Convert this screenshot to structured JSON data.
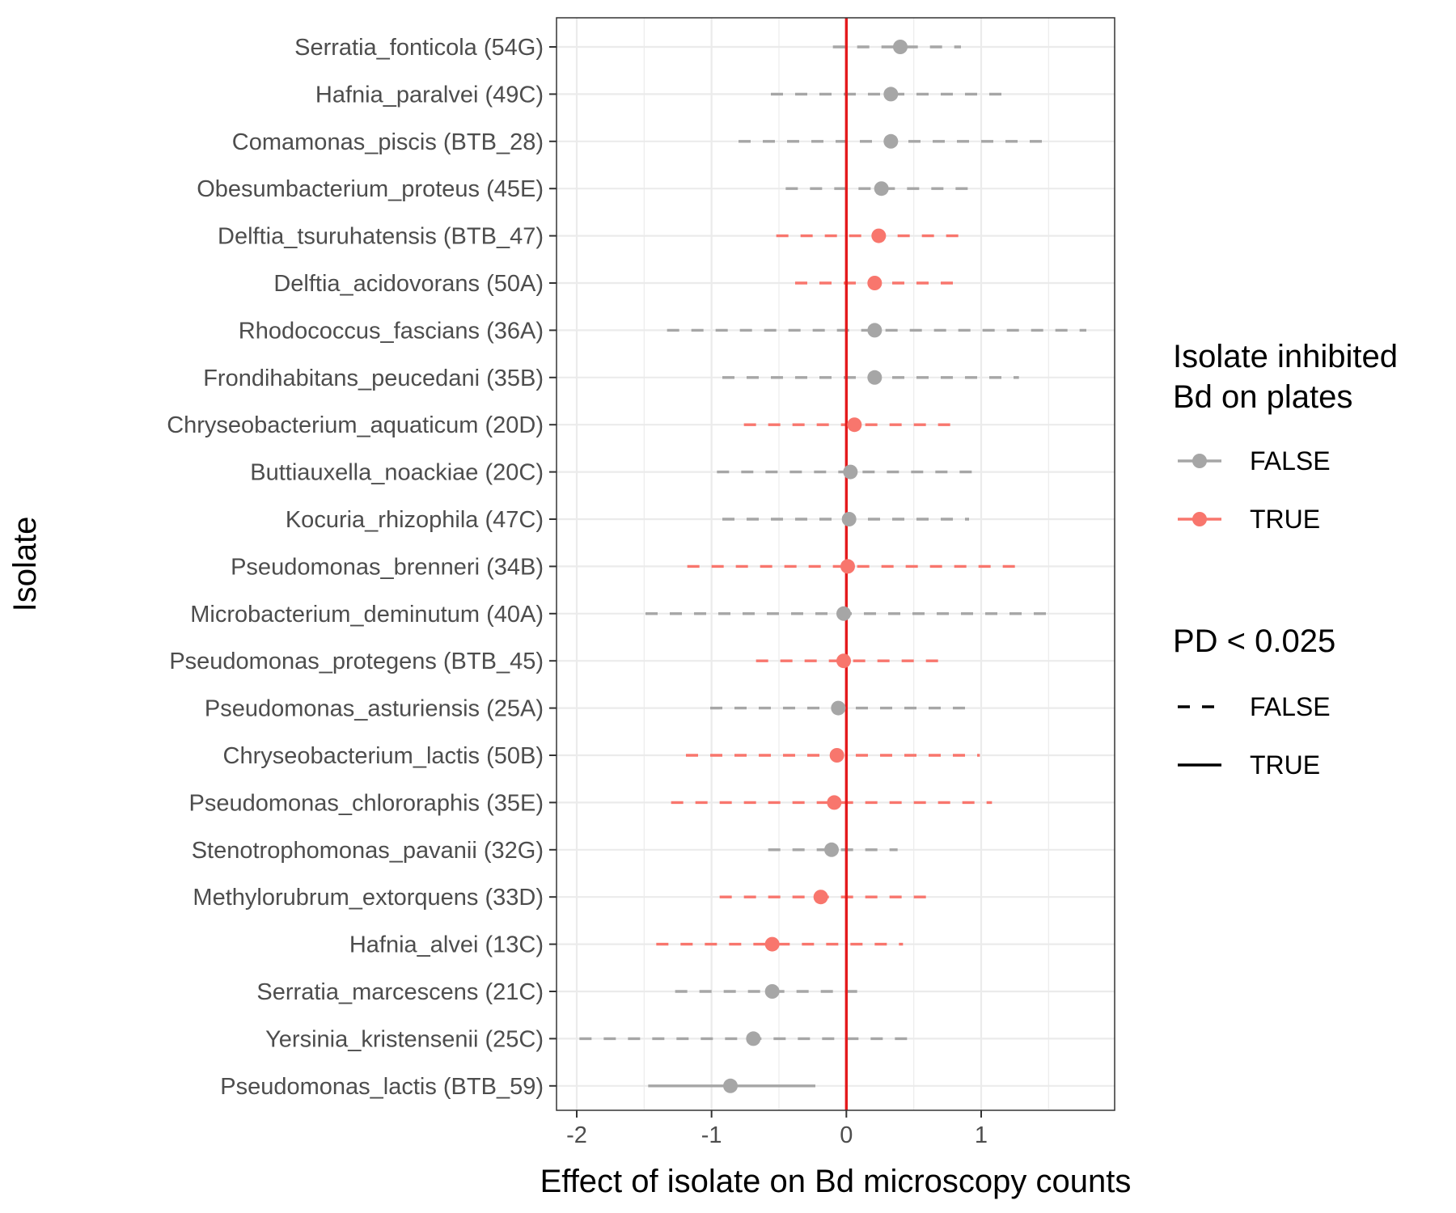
{
  "chart_data": {
    "type": "scatter",
    "orientation": "horizontal",
    "xlabel": "Effect of isolate on Bd microscopy counts",
    "ylabel": "Isolate",
    "xlim": [
      -2.15,
      1.99
    ],
    "x_ticks": [
      -2,
      -1,
      0,
      1
    ],
    "x_tick_labels": [
      "-2",
      "-1",
      "0",
      "1"
    ],
    "reference_line": {
      "x": 0,
      "color": "#e41a1c"
    },
    "grid": true,
    "categories": [
      "Serratia_fonticola (54G)",
      "Hafnia_paralvei (49C)",
      "Comamonas_piscis (BTB_28)",
      "Obesumbacterium_proteus (45E)",
      "Delftia_tsuruhatensis (BTB_47)",
      "Delftia_acidovorans (50A)",
      "Rhodococcus_fascians (36A)",
      "Frondihabitans_peucedani (35B)",
      "Chryseobacterium_aquaticum (20D)",
      "Buttiauxella_noackiae (20C)",
      "Kocuria_rhizophila (47C)",
      "Pseudomonas_brenneri (34B)",
      "Microbacterium_deminutum (40A)",
      "Pseudomonas_protegens (BTB_45)",
      "Pseudomonas_asturiensis (25A)",
      "Chryseobacterium_lactis (50B)",
      "Pseudomonas_chlororaphis (35E)",
      "Stenotrophomonas_pavanii (32G)",
      "Methylorubrum_extorquens (33D)",
      "Hafnia_alvei (13C)",
      "Serratia_marcescens (21C)",
      "Yersinia_kristensenii (25C)",
      "Pseudomonas_lactis (BTB_59)"
    ],
    "points": [
      {
        "estimate": 0.4,
        "lower": -0.1,
        "upper": 0.85,
        "inhibited": false,
        "pd": false
      },
      {
        "estimate": 0.33,
        "lower": -0.56,
        "upper": 1.21,
        "inhibited": false,
        "pd": false
      },
      {
        "estimate": 0.33,
        "lower": -0.8,
        "upper": 1.46,
        "inhibited": false,
        "pd": false
      },
      {
        "estimate": 0.26,
        "lower": -0.45,
        "upper": 0.95,
        "inhibited": false,
        "pd": false
      },
      {
        "estimate": 0.24,
        "lower": -0.52,
        "upper": 0.87,
        "inhibited": true,
        "pd": false
      },
      {
        "estimate": 0.21,
        "lower": -0.38,
        "upper": 0.81,
        "inhibited": true,
        "pd": false
      },
      {
        "estimate": 0.21,
        "lower": -1.33,
        "upper": 1.78,
        "inhibited": false,
        "pd": false
      },
      {
        "estimate": 0.21,
        "lower": -0.92,
        "upper": 1.28,
        "inhibited": false,
        "pd": false
      },
      {
        "estimate": 0.06,
        "lower": -0.76,
        "upper": 0.84,
        "inhibited": true,
        "pd": false
      },
      {
        "estimate": 0.03,
        "lower": -0.96,
        "upper": 1.0,
        "inhibited": false,
        "pd": false
      },
      {
        "estimate": 0.02,
        "lower": -0.92,
        "upper": 0.91,
        "inhibited": false,
        "pd": false
      },
      {
        "estimate": 0.01,
        "lower": -1.18,
        "upper": 1.28,
        "inhibited": true,
        "pd": false
      },
      {
        "estimate": -0.02,
        "lower": -1.49,
        "upper": 1.53,
        "inhibited": false,
        "pd": false
      },
      {
        "estimate": -0.02,
        "lower": -0.67,
        "upper": 0.71,
        "inhibited": true,
        "pd": false
      },
      {
        "estimate": -0.06,
        "lower": -1.01,
        "upper": 0.95,
        "inhibited": false,
        "pd": false
      },
      {
        "estimate": -0.07,
        "lower": -1.19,
        "upper": 0.99,
        "inhibited": true,
        "pd": false
      },
      {
        "estimate": -0.09,
        "lower": -1.3,
        "upper": 1.08,
        "inhibited": true,
        "pd": false
      },
      {
        "estimate": -0.11,
        "lower": -0.58,
        "upper": 0.38,
        "inhibited": false,
        "pd": false
      },
      {
        "estimate": -0.19,
        "lower": -0.94,
        "upper": 0.64,
        "inhibited": true,
        "pd": false
      },
      {
        "estimate": -0.55,
        "lower": -1.41,
        "upper": 0.42,
        "inhibited": true,
        "pd": false
      },
      {
        "estimate": -0.55,
        "lower": -1.27,
        "upper": 0.1,
        "inhibited": false,
        "pd": false
      },
      {
        "estimate": -0.69,
        "lower": -1.98,
        "upper": 0.49,
        "inhibited": false,
        "pd": false
      },
      {
        "estimate": -0.86,
        "lower": -1.47,
        "upper": -0.23,
        "inhibited": false,
        "pd": true
      }
    ],
    "legends": [
      {
        "title": [
          "Isolate inhibited",
          "Bd on plates"
        ],
        "kind": "color",
        "items": [
          {
            "label": "FALSE",
            "color": "#a6a6a6"
          },
          {
            "label": "TRUE",
            "color": "#f8766d"
          }
        ]
      },
      {
        "title": [
          "PD < 0.025"
        ],
        "kind": "linetype",
        "items": [
          {
            "label": "FALSE",
            "style": "dashed"
          },
          {
            "label": "TRUE",
            "style": "solid"
          }
        ]
      }
    ],
    "legend_position": "right"
  }
}
